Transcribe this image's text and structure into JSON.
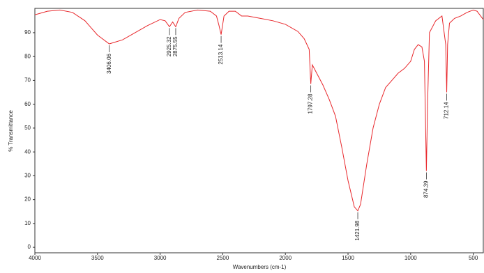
{
  "chart_data": {
    "type": "line",
    "xlabel": "Wavenumbers (cm-1)",
    "ylabel": "% Transmittance",
    "xlim": [
      4000,
      420
    ],
    "ylim": [
      -2.3,
      100.2
    ],
    "xticks": [
      4000,
      3500,
      3000,
      2500,
      2000,
      1500,
      1000,
      500
    ],
    "yticks": [
      0,
      10,
      20,
      30,
      40,
      50,
      60,
      70,
      80,
      90
    ],
    "series": [
      {
        "color": "#e8272b",
        "x": [
          4000,
          3900,
          3800,
          3700,
          3600,
          3500,
          3406.06,
          3300,
          3200,
          3100,
          3000,
          2960,
          2925.32,
          2900,
          2875.55,
          2850,
          2800,
          2700,
          2600,
          2550,
          2530,
          2513.14,
          2490,
          2450,
          2400,
          2350,
          2300,
          2200,
          2100,
          2000,
          1900,
          1850,
          1810,
          1797.28,
          1785,
          1770,
          1700,
          1650,
          1600,
          1550,
          1500,
          1450,
          1421.98,
          1400,
          1350,
          1300,
          1250,
          1200,
          1150,
          1100,
          1050,
          1000,
          970,
          940,
          910,
          890,
          874.39,
          865,
          850,
          800,
          750,
          720,
          712.14,
          705,
          690,
          650,
          600,
          550,
          500,
          470,
          420
        ],
        "values": [
          97.5,
          99,
          99.5,
          98.5,
          95,
          89,
          85.3,
          87,
          90,
          93,
          95.5,
          95,
          92.5,
          94.5,
          92.5,
          96,
          98.5,
          99.5,
          99,
          97,
          93,
          89.2,
          97,
          99,
          99,
          97,
          97,
          96,
          95,
          93.5,
          90.5,
          87.5,
          83,
          68.5,
          76.5,
          75,
          68,
          62,
          55,
          42,
          28,
          17,
          15.3,
          18,
          35,
          50,
          60,
          67,
          70,
          73,
          75,
          78,
          83,
          85,
          84,
          78,
          32,
          60,
          90,
          95,
          97,
          85,
          65,
          85,
          94,
          96,
          97,
          98.5,
          99.5,
          99,
          95.5
        ]
      }
    ],
    "peaks": [
      {
        "x": 3406.06,
        "y": 85.3
      },
      {
        "x": 2925.32,
        "y": 92.5
      },
      {
        "x": 2875.55,
        "y": 92.5
      },
      {
        "x": 2513.14,
        "y": 89.2
      },
      {
        "x": 1797.28,
        "y": 68.5
      },
      {
        "x": 1421.98,
        "y": 15.3
      },
      {
        "x": 874.39,
        "y": 32
      },
      {
        "x": 712.14,
        "y": 65
      }
    ]
  }
}
